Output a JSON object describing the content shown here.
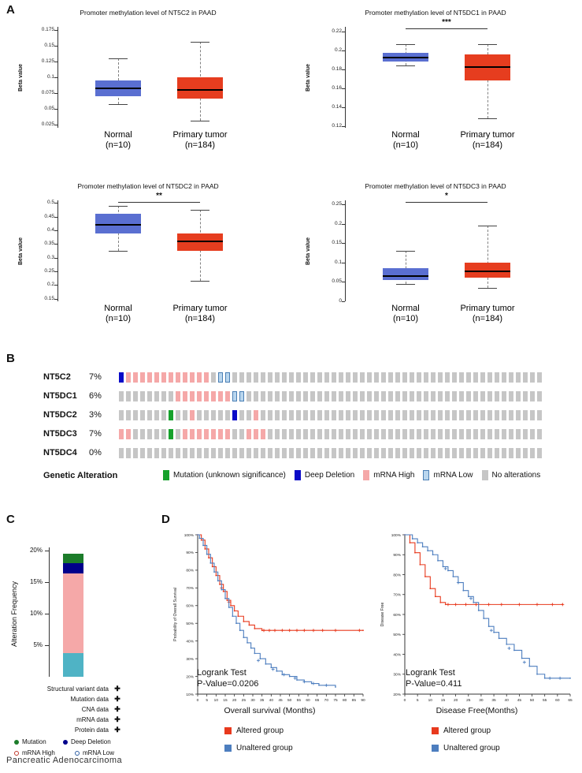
{
  "panel_labels": {
    "a": "A",
    "b": "B",
    "c": "C",
    "d": "D"
  },
  "chart_data": [
    {
      "type": "box",
      "title": "Promoter methylation level of NT5C2 in PAAD",
      "ylabel": "Beta value",
      "ylim": [
        0.02,
        0.18
      ],
      "yticks": [
        "0.025",
        "0.05",
        "0.075",
        "0.1",
        "0.125",
        "0.15",
        "0.175"
      ],
      "significance": "",
      "groups": [
        {
          "label": "Normal",
          "n": "(n=10)",
          "color": "#5a6fd1",
          "whislo": 0.057,
          "q1": 0.07,
          "med": 0.082,
          "q3": 0.095,
          "whishi": 0.13
        },
        {
          "label": "Primary tumor",
          "n": "(n=184)",
          "color": "#e63d1f",
          "whislo": 0.031,
          "q1": 0.066,
          "med": 0.08,
          "q3": 0.1,
          "whishi": 0.156
        }
      ]
    },
    {
      "type": "box",
      "title": "Promoter methylation level of NT5DC1 in PAAD",
      "ylabel": "Beta value",
      "ylim": [
        0.118,
        0.225
      ],
      "yticks": [
        "0.12",
        "0.14",
        "0.16",
        "0.18",
        "0.2",
        "0.22"
      ],
      "significance": "***",
      "groups": [
        {
          "label": "Normal",
          "n": "(n=10)",
          "color": "#5a6fd1",
          "whislo": 0.184,
          "q1": 0.188,
          "med": 0.192,
          "q3": 0.197,
          "whishi": 0.207
        },
        {
          "label": "Primary tumor",
          "n": "(n=184)",
          "color": "#e63d1f",
          "whislo": 0.128,
          "q1": 0.168,
          "med": 0.182,
          "q3": 0.196,
          "whishi": 0.207
        }
      ]
    },
    {
      "type": "box",
      "title": "Promoter methylation level of NT5DC2 in PAAD",
      "ylabel": "Beta value",
      "ylim": [
        0.14,
        0.51
      ],
      "yticks": [
        "0.15",
        "0.2",
        "0.25",
        "0.3",
        "0.35",
        "0.4",
        "0.45",
        "0.5"
      ],
      "significance": "**",
      "groups": [
        {
          "label": "Normal",
          "n": "(n=10)",
          "color": "#5a6fd1",
          "whislo": 0.325,
          "q1": 0.39,
          "med": 0.42,
          "q3": 0.46,
          "whishi": 0.49
        },
        {
          "label": "Primary tumor",
          "n": "(n=184)",
          "color": "#e63d1f",
          "whislo": 0.215,
          "q1": 0.325,
          "med": 0.36,
          "q3": 0.39,
          "whishi": 0.475
        }
      ]
    },
    {
      "type": "box",
      "title": "Promoter methylation level of NT5DC3 in PAAD",
      "ylabel": "Beta value",
      "ylim": [
        0,
        0.26
      ],
      "yticks": [
        "0",
        "0.05",
        "0.1",
        "0.15",
        "0.2",
        "0.25"
      ],
      "significance": "*",
      "groups": [
        {
          "label": "Normal",
          "n": "(n=10)",
          "color": "#5a6fd1",
          "whislo": 0.045,
          "q1": 0.055,
          "med": 0.065,
          "q3": 0.085,
          "whishi": 0.13
        },
        {
          "label": "Primary tumor",
          "n": "(n=184)",
          "color": "#e63d1f",
          "whislo": 0.035,
          "q1": 0.06,
          "med": 0.078,
          "q3": 0.1,
          "whishi": 0.195
        }
      ]
    },
    {
      "type": "oncoprint",
      "rows": [
        {
          "gene": "NT5C2",
          "pct": "7%",
          "pattern": "DPPPPPPPPPPPPGLL"
        },
        {
          "gene": "NT5DC1",
          "pct": "6%",
          "pattern": "GGGGGGGGPPPPPPPPLL"
        },
        {
          "gene": "NT5DC2",
          "pct": "3%",
          "pattern": "GGGGGGGMGGPGGGGGDGGP"
        },
        {
          "gene": "NT5DC3",
          "pct": "7%",
          "pattern": "PPGGGGGMGPPPPPPPGGPPP"
        },
        {
          "gene": "NT5DC4",
          "pct": "0%",
          "pattern": ""
        }
      ],
      "colors": {
        "G": "#c6c6c6",
        "P": "#f5a8a8",
        "D": "#0a0ac8",
        "M": "#16a12c",
        "L": {
          "fill": "#b9d6ee",
          "border": "#4a7fb5"
        }
      },
      "legend_title": "Genetic Alteration",
      "legend": [
        {
          "label": "Mutation (unknown significance)",
          "color": "#16a12c"
        },
        {
          "label": "Deep Deletion",
          "color": "#0a0ac8"
        },
        {
          "label": "mRNA High",
          "color": "#f5a8a8"
        },
        {
          "label": "mRNA Low",
          "color": "#b9d6ee",
          "border": "#4a7fb5"
        },
        {
          "label": "No alterations",
          "color": "#c6c6c6"
        }
      ]
    },
    {
      "type": "bar",
      "ylabel": "Alteration Frequency",
      "yticks": [
        5,
        10,
        15,
        20
      ],
      "ymax": 21,
      "stack": [
        {
          "name": "mRNA Low",
          "value": 3.8,
          "color": "#4fb3c5"
        },
        {
          "name": "mRNA High",
          "value": 12.6,
          "color": "#f5a8a8"
        },
        {
          "name": "Deep Deletion",
          "value": 1.6,
          "color": "#00008b"
        },
        {
          "name": "Mutation",
          "value": 1.5,
          "color": "#1c7c2a"
        }
      ],
      "data_types": [
        {
          "label": "Structural variant data",
          "mark": "✚"
        },
        {
          "label": "Mutation data",
          "mark": "✚"
        },
        {
          "label": "CNA data",
          "mark": "✚"
        },
        {
          "label": "mRNA data",
          "mark": "✚"
        },
        {
          "label": "Protein data",
          "mark": "✚"
        }
      ],
      "legend": [
        {
          "label": "Mutation",
          "color": "#1c7c2a",
          "filled": true
        },
        {
          "label": "Deep Deletion",
          "color": "#00008b",
          "filled": true
        },
        {
          "label": "mRNA High",
          "color": "#c0392b",
          "filled": false
        },
        {
          "label": "mRNA Low",
          "color": "#2e5fa3",
          "filled": false
        }
      ],
      "caption": "Pancreatic Adenocarcinoma"
    },
    {
      "type": "line",
      "ylabel": "Probability of Overall Survival",
      "xlabel": "Overall survival (Months)",
      "xmax": 90,
      "xtick_step": 5,
      "ylim": [
        10,
        100
      ],
      "annotation": {
        "l1": "Logrank Test",
        "l2": "P-Value=0.0206"
      },
      "series": [
        {
          "name": "Altered group",
          "color": "#e8391d",
          "points": [
            [
              0,
              100
            ],
            [
              2,
              97
            ],
            [
              4,
              92
            ],
            [
              6,
              87
            ],
            [
              8,
              82
            ],
            [
              10,
              77
            ],
            [
              12,
              72
            ],
            [
              14,
              68
            ],
            [
              16,
              63
            ],
            [
              18,
              60
            ],
            [
              20,
              57
            ],
            [
              22,
              54
            ],
            [
              25,
              51
            ],
            [
              28,
              49
            ],
            [
              31,
              47
            ],
            [
              35,
              46
            ],
            [
              90,
              46
            ]
          ],
          "censors": [
            [
              13,
              70
            ],
            [
              17,
              62
            ],
            [
              36,
              46
            ],
            [
              39,
              46
            ],
            [
              42,
              46
            ],
            [
              46,
              46
            ],
            [
              50,
              46
            ],
            [
              54,
              46
            ],
            [
              58,
              46
            ],
            [
              63,
              46
            ],
            [
              68,
              46
            ],
            [
              75,
              46
            ],
            [
              88,
              46
            ]
          ]
        },
        {
          "name": "Unaltered group",
          "color": "#4d7ebf",
          "points": [
            [
              0,
              100
            ],
            [
              1,
              98
            ],
            [
              3,
              94
            ],
            [
              5,
              89
            ],
            [
              7,
              84
            ],
            [
              9,
              79
            ],
            [
              11,
              74
            ],
            [
              13,
              69
            ],
            [
              15,
              64
            ],
            [
              17,
              59
            ],
            [
              19,
              54
            ],
            [
              21,
              50
            ],
            [
              23,
              46
            ],
            [
              25,
              42
            ],
            [
              27,
              39
            ],
            [
              29,
              36
            ],
            [
              31,
              33
            ],
            [
              34,
              30
            ],
            [
              37,
              27
            ],
            [
              40,
              25
            ],
            [
              43,
              23
            ],
            [
              46,
              21
            ],
            [
              50,
              20
            ],
            [
              54,
              18
            ],
            [
              58,
              17
            ],
            [
              62,
              16
            ],
            [
              66,
              15
            ],
            [
              70,
              15
            ],
            [
              75,
              14
            ]
          ],
          "censors": [
            [
              33,
              29
            ],
            [
              41,
              24
            ],
            [
              47,
              21
            ],
            [
              53,
              19
            ],
            [
              58,
              17
            ],
            [
              63,
              16
            ],
            [
              70,
              15
            ]
          ]
        }
      ]
    },
    {
      "type": "line",
      "ylabel": "Disease Free",
      "xlabel": "Disease Free(Months)",
      "xmax": 65,
      "xtick_step": 5,
      "ylim": [
        20,
        100
      ],
      "annotation": {
        "l1": "Logrank Test",
        "l2": "P-Value=0.411"
      },
      "series": [
        {
          "name": "Altered group",
          "color": "#e8391d",
          "points": [
            [
              0,
              100
            ],
            [
              2,
              96
            ],
            [
              4,
              91
            ],
            [
              6,
              85
            ],
            [
              8,
              79
            ],
            [
              10,
              73
            ],
            [
              12,
              69
            ],
            [
              14,
              66
            ],
            [
              16,
              65
            ],
            [
              62,
              65
            ]
          ],
          "censors": [
            [
              17,
              65
            ],
            [
              20,
              65
            ],
            [
              24,
              65
            ],
            [
              28,
              65
            ],
            [
              33,
              65
            ],
            [
              38,
              65
            ],
            [
              45,
              65
            ],
            [
              52,
              65
            ],
            [
              58,
              65
            ],
            [
              62,
              65
            ]
          ]
        },
        {
          "name": "Unaltered group",
          "color": "#4d7ebf",
          "points": [
            [
              0,
              100
            ],
            [
              3,
              98
            ],
            [
              5,
              96
            ],
            [
              7,
              94
            ],
            [
              9,
              92
            ],
            [
              11,
              90
            ],
            [
              13,
              87
            ],
            [
              15,
              84
            ],
            [
              17,
              82
            ],
            [
              19,
              79
            ],
            [
              21,
              76
            ],
            [
              23,
              72
            ],
            [
              25,
              69
            ],
            [
              27,
              66
            ],
            [
              29,
              62
            ],
            [
              31,
              58
            ],
            [
              33,
              54
            ],
            [
              35,
              51
            ],
            [
              37,
              48
            ],
            [
              40,
              45
            ],
            [
              43,
              42
            ],
            [
              46,
              38
            ],
            [
              49,
              34
            ],
            [
              52,
              30
            ],
            [
              55,
              28
            ],
            [
              65,
              28
            ]
          ],
          "censors": [
            [
              16,
              83
            ],
            [
              21,
              76
            ],
            [
              26,
              68
            ],
            [
              34,
              52
            ],
            [
              41,
              43
            ],
            [
              47,
              36
            ],
            [
              57,
              28
            ],
            [
              61,
              28
            ]
          ]
        }
      ]
    }
  ]
}
